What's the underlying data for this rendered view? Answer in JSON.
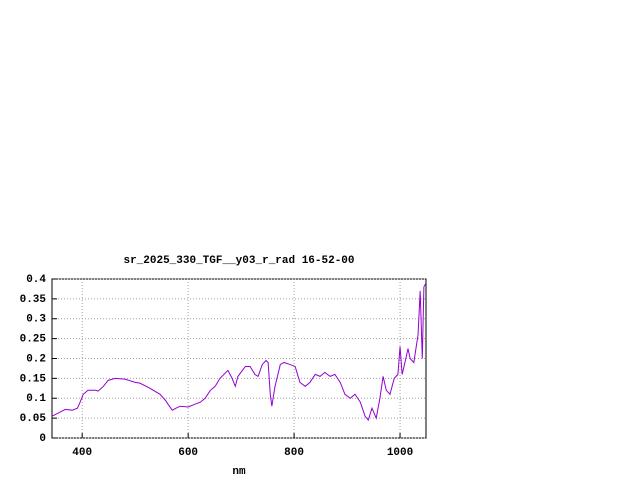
{
  "chart_data": {
    "type": "line",
    "title": "sr_2025_330_TGF__y03_r_rad 16-52-00",
    "x_label": "nm",
    "x": [
      343,
      358,
      368,
      381,
      391,
      396,
      402,
      411,
      425,
      430,
      440,
      449,
      462,
      481,
      500,
      509,
      528,
      547,
      557,
      562,
      570,
      577,
      585,
      600,
      613,
      623,
      632,
      642,
      651,
      660,
      675,
      683,
      689,
      694,
      708,
      717,
      726,
      732,
      740,
      747,
      751,
      755,
      758,
      764,
      774,
      781,
      792,
      802,
      811,
      821,
      830,
      840,
      849,
      858,
      868,
      877,
      887,
      896,
      906,
      915,
      925,
      934,
      940,
      947,
      955,
      962,
      968,
      974,
      981,
      989,
      996,
      1000,
      1004,
      1011,
      1015,
      1019,
      1026,
      1034,
      1038,
      1042,
      1045,
      1049
    ],
    "series": [
      {
        "color": "#9400d3",
        "values": [
          0.055,
          0.065,
          0.072,
          0.07,
          0.075,
          0.09,
          0.11,
          0.12,
          0.12,
          0.118,
          0.13,
          0.145,
          0.15,
          0.148,
          0.14,
          0.138,
          0.125,
          0.11,
          0.095,
          0.085,
          0.07,
          0.075,
          0.08,
          0.078,
          0.085,
          0.09,
          0.1,
          0.12,
          0.13,
          0.15,
          0.17,
          0.15,
          0.13,
          0.155,
          0.18,
          0.18,
          0.16,
          0.155,
          0.185,
          0.195,
          0.19,
          0.11,
          0.08,
          0.13,
          0.185,
          0.19,
          0.185,
          0.18,
          0.14,
          0.13,
          0.14,
          0.16,
          0.155,
          0.165,
          0.155,
          0.16,
          0.14,
          0.11,
          0.1,
          0.11,
          0.09,
          0.055,
          0.045,
          0.075,
          0.05,
          0.1,
          0.155,
          0.12,
          0.11,
          0.15,
          0.16,
          0.23,
          0.16,
          0.2,
          0.225,
          0.2,
          0.19,
          0.26,
          0.37,
          0.2,
          0.38,
          0.39
        ]
      }
    ],
    "xlim": [
      343,
      1049
    ],
    "ylim": [
      0,
      0.4
    ],
    "xticks": [
      400,
      600,
      800,
      1000
    ],
    "yticks": [
      0,
      0.05,
      0.1,
      0.15,
      0.2,
      0.25,
      0.3,
      0.35,
      0.4
    ],
    "grid": true
  }
}
